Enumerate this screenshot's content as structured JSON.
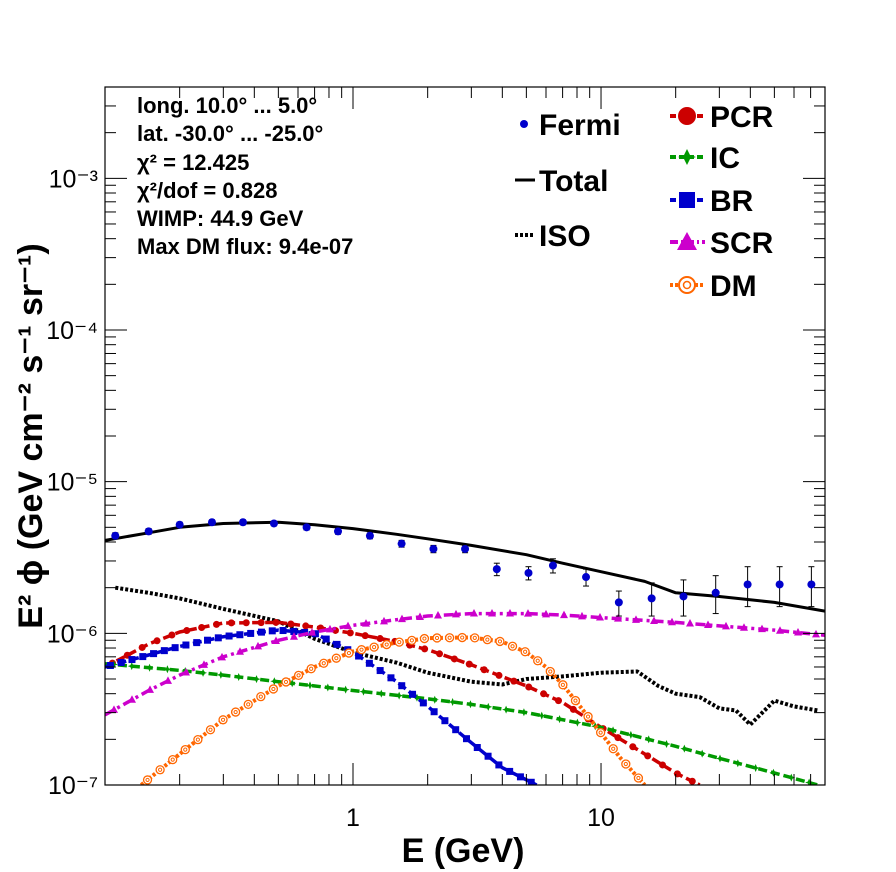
{
  "chart_data": {
    "type": "line",
    "xlabel": "E (GeV)",
    "ylabel": "E² ϕ (GeV cm⁻² s⁻¹ sr⁻¹)",
    "xscale": "log",
    "yscale": "log",
    "xlim": [
      0.1,
      80
    ],
    "ylim": [
      1e-07,
      0.004
    ],
    "x_tick_labels": [
      "1",
      "10"
    ],
    "x_tick_values": [
      1,
      10
    ],
    "y_tick_labels": [
      "10⁻⁷",
      "10⁻⁶",
      "10⁻⁵",
      "10⁻⁴",
      "10⁻³"
    ],
    "y_tick_values": [
      1e-07,
      1e-06,
      1e-05,
      0.0001,
      0.001
    ],
    "grid": false,
    "legend_placement": "top-right",
    "info_lines": [
      "long. 10.0° ... 5.0°",
      "lat. -30.0° ... -25.0°",
      "χ² = 12.425",
      "χ²/dof = 0.828",
      "WIMP: 44.9 GeV",
      "Max DM flux: 9.4e-07"
    ],
    "legend": [
      {
        "label": "Fermi",
        "color": "#0000cc",
        "marker": "dot"
      },
      {
        "label": "Total",
        "color": "#000000",
        "marker": "solid-line"
      },
      {
        "label": "ISO",
        "color": "#000000",
        "marker": "dotted-line"
      },
      {
        "label": "PCR",
        "color": "#cc0000",
        "marker": "circle"
      },
      {
        "label": "IC",
        "color": "#009900",
        "marker": "star"
      },
      {
        "label": "BR",
        "color": "#0000cc",
        "marker": "square"
      },
      {
        "label": "SCR",
        "color": "#cc00cc",
        "marker": "triangle"
      },
      {
        "label": "DM",
        "color": "#ff6600",
        "marker": "open-circle"
      }
    ],
    "fermi": {
      "x": [
        0.11,
        0.15,
        0.2,
        0.27,
        0.36,
        0.48,
        0.65,
        0.87,
        1.17,
        1.57,
        2.11,
        2.83,
        3.8,
        5.1,
        6.4,
        8.7,
        11.8,
        16,
        21.5,
        29,
        39,
        52.5,
        70.5
      ],
      "y": [
        4.4e-06,
        4.7e-06,
        5.2e-06,
        5.4e-06,
        5.4e-06,
        5.3e-06,
        5e-06,
        4.7e-06,
        4.4e-06,
        3.9e-06,
        3.6e-06,
        3.6e-06,
        2.65e-06,
        2.5e-06,
        2.8e-06,
        2.35e-06,
        1.6e-06,
        1.7e-06,
        1.75e-06,
        1.85e-06,
        2.1e-06,
        2.1e-06,
        2.1e-06
      ],
      "yerr_lo": [
        2e-07,
        2e-07,
        2e-07,
        2e-07,
        2e-07,
        2e-07,
        2e-07,
        2e-07,
        2e-07,
        2e-07,
        2e-07,
        2e-07,
        2.5e-07,
        2.5e-07,
        3e-07,
        3e-07,
        3e-07,
        4e-07,
        4.5e-07,
        5e-07,
        6e-07,
        6e-07,
        6e-07
      ],
      "yerr_hi": [
        2e-07,
        2e-07,
        2e-07,
        2e-07,
        2e-07,
        2e-07,
        2e-07,
        2e-07,
        2e-07,
        2e-07,
        2e-07,
        2e-07,
        2.5e-07,
        2.5e-07,
        3e-07,
        3e-07,
        3e-07,
        4.5e-07,
        5e-07,
        5.5e-07,
        6.5e-07,
        6.5e-07,
        6.5e-07
      ]
    },
    "series": [
      {
        "name": "Total",
        "color": "#000000",
        "style": "solid",
        "marker": "none",
        "x": [
          0.1,
          0.15,
          0.2,
          0.3,
          0.5,
          0.7,
          1,
          1.5,
          2,
          3,
          5,
          7,
          10,
          15,
          20,
          30,
          50,
          80
        ],
        "y": [
          4.1e-06,
          4.6e-06,
          5e-06,
          5.3e-06,
          5.4e-06,
          5.2e-06,
          4.9e-06,
          4.5e-06,
          4.2e-06,
          3.8e-06,
          3.3e-06,
          2.9e-06,
          2.55e-06,
          2.2e-06,
          1.85e-06,
          1.75e-06,
          1.6e-06,
          1.4e-06
        ]
      },
      {
        "name": "ISO",
        "color": "#000000",
        "style": "dotted",
        "marker": "none",
        "x": [
          0.11,
          0.15,
          0.2,
          0.3,
          0.5,
          0.7,
          1,
          1.5,
          2,
          3,
          4,
          5,
          7,
          10,
          14,
          17,
          20,
          25,
          30,
          35,
          40,
          50,
          60,
          75
        ],
        "y": [
          2e-06,
          1.85e-06,
          1.7e-06,
          1.45e-06,
          1.2e-06,
          9.2e-07,
          7.5e-07,
          6.4e-07,
          5.5e-07,
          4.8e-07,
          4.6e-07,
          5e-07,
          5.2e-07,
          5.5e-07,
          5.6e-07,
          4.5e-07,
          4e-07,
          3.8e-07,
          3.2e-07,
          3.1e-07,
          2.5e-07,
          3.6e-07,
          3.3e-07,
          3.1e-07
        ]
      },
      {
        "name": "PCR",
        "color": "#cc0000",
        "style": "dashed",
        "marker": "circle",
        "x": [
          0.1,
          0.15,
          0.2,
          0.3,
          0.5,
          0.7,
          1,
          1.5,
          2,
          3,
          5,
          7,
          10,
          15,
          20,
          25
        ],
        "y": [
          6e-07,
          8.5e-07,
          1.02e-06,
          1.17e-06,
          1.18e-06,
          1.1e-06,
          1e-06,
          8.8e-07,
          7.8e-07,
          6.2e-07,
          4.5e-07,
          3.5e-07,
          2.4e-07,
          1.6e-07,
          1.2e-07,
          1e-07
        ]
      },
      {
        "name": "IC",
        "color": "#009900",
        "style": "dashed",
        "marker": "star",
        "x": [
          0.1,
          0.2,
          0.3,
          0.5,
          1,
          2,
          3,
          5,
          10,
          20,
          30,
          50,
          75
        ],
        "y": [
          6.3e-07,
          5.7e-07,
          5.3e-07,
          4.8e-07,
          4.2e-07,
          3.7e-07,
          3.4e-07,
          3e-07,
          2.4e-07,
          1.8e-07,
          1.5e-07,
          1.2e-07,
          1e-07
        ]
      },
      {
        "name": "BR",
        "color": "#0000cc",
        "style": "dashed",
        "marker": "square",
        "x": [
          0.1,
          0.15,
          0.2,
          0.3,
          0.5,
          0.7,
          1,
          1.5,
          2,
          3,
          4,
          5.5
        ],
        "y": [
          6e-07,
          7.2e-07,
          8.2e-07,
          9.5e-07,
          1.05e-06,
          1e-06,
          7.5e-07,
          4.8e-07,
          3.3e-07,
          1.9e-07,
          1.3e-07,
          1e-07
        ]
      },
      {
        "name": "SCR",
        "color": "#cc00cc",
        "style": "dash-dot",
        "marker": "triangle",
        "x": [
          0.1,
          0.15,
          0.2,
          0.3,
          0.5,
          0.7,
          1,
          1.5,
          2,
          3,
          5,
          7,
          10,
          20,
          30,
          50,
          80
        ],
        "y": [
          2.9e-07,
          4.2e-07,
          5.3e-07,
          7e-07,
          9e-07,
          1.02e-06,
          1.13e-06,
          1.23e-06,
          1.3e-06,
          1.35e-06,
          1.35e-06,
          1.32e-06,
          1.27e-06,
          1.18e-06,
          1.12e-06,
          1.05e-06,
          9.7e-07
        ]
      },
      {
        "name": "DM",
        "color": "#ff6600",
        "style": "dotted",
        "marker": "open-circle",
        "x": [
          0.14,
          0.2,
          0.3,
          0.5,
          0.7,
          1,
          1.5,
          2,
          3,
          4,
          5,
          6,
          7,
          8,
          10,
          12,
          15
        ],
        "y": [
          1e-07,
          1.6e-07,
          2.7e-07,
          4.5e-07,
          6e-07,
          7.6e-07,
          8.7e-07,
          9.3e-07,
          9.4e-07,
          8.8e-07,
          7.5e-07,
          6e-07,
          4.6e-07,
          3.5e-07,
          2.2e-07,
          1.5e-07,
          1e-07
        ]
      }
    ]
  }
}
